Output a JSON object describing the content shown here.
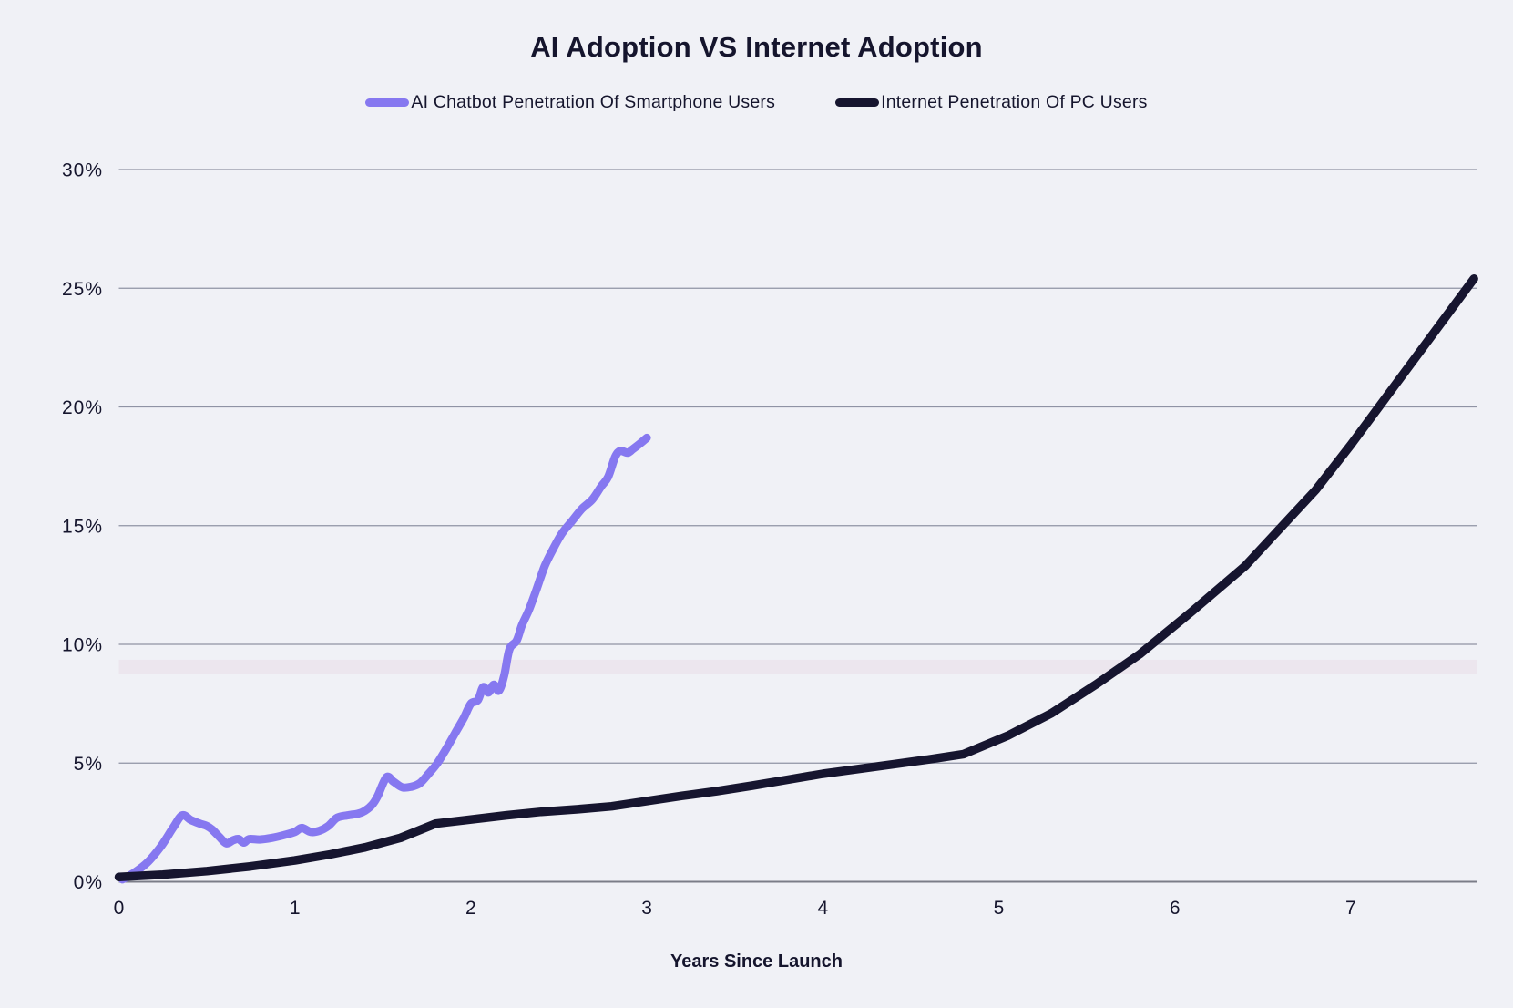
{
  "page": {
    "title": "AI Adoption VS Internet Adoption",
    "x_axis_title": "Years Since Launch"
  },
  "colors": {
    "background": "#f0f1f6",
    "gridline": "#8f93a4",
    "axis_line": "#7b7d88",
    "text": "#15152d",
    "ai_series": "#8678f0",
    "internet_series": "#16152f",
    "highlight_band": "#dfb8cc"
  },
  "chart_data": {
    "type": "line",
    "title": "AI Adoption VS Internet Adoption",
    "xlabel": "Years Since Launch",
    "ylabel": "",
    "xlim": [
      0,
      7.72
    ],
    "ylim": [
      0,
      30
    ],
    "grid": "horizontal",
    "legend_position": "top",
    "x_ticks": [
      {
        "value": 0,
        "label": "0"
      },
      {
        "value": 1,
        "label": "1"
      },
      {
        "value": 2,
        "label": "2"
      },
      {
        "value": 3,
        "label": "3"
      },
      {
        "value": 4,
        "label": "4"
      },
      {
        "value": 5,
        "label": "5"
      },
      {
        "value": 6,
        "label": "6"
      },
      {
        "value": 7,
        "label": "7"
      }
    ],
    "y_ticks": [
      {
        "value": 0,
        "label": "0%"
      },
      {
        "value": 5,
        "label": "5%"
      },
      {
        "value": 10,
        "label": "10%"
      },
      {
        "value": 15,
        "label": "15%"
      },
      {
        "value": 20,
        "label": "20%"
      },
      {
        "value": 25,
        "label": "25%"
      },
      {
        "value": 30,
        "label": "30%"
      }
    ],
    "highlight_band": {
      "y_from": 8.75,
      "y_to": 9.35,
      "color": "#dfb8cc",
      "opacity": 0.18
    },
    "series": [
      {
        "name": "AI Chatbot Penetration Of Smartphone Users",
        "color": "#8678f0",
        "smooth": true,
        "stroke_width": 9,
        "points": [
          [
            0.02,
            0.1
          ],
          [
            0.08,
            0.35
          ],
          [
            0.16,
            0.8
          ],
          [
            0.24,
            1.5
          ],
          [
            0.31,
            2.3
          ],
          [
            0.36,
            2.8
          ],
          [
            0.41,
            2.6
          ],
          [
            0.46,
            2.45
          ],
          [
            0.5,
            2.35
          ],
          [
            0.53,
            2.2
          ],
          [
            0.57,
            1.9
          ],
          [
            0.61,
            1.62
          ],
          [
            0.65,
            1.75
          ],
          [
            0.68,
            1.8
          ],
          [
            0.71,
            1.65
          ],
          [
            0.74,
            1.8
          ],
          [
            0.8,
            1.78
          ],
          [
            0.87,
            1.85
          ],
          [
            0.94,
            1.97
          ],
          [
            1.0,
            2.1
          ],
          [
            1.04,
            2.27
          ],
          [
            1.09,
            2.1
          ],
          [
            1.14,
            2.15
          ],
          [
            1.19,
            2.35
          ],
          [
            1.24,
            2.7
          ],
          [
            1.3,
            2.8
          ],
          [
            1.36,
            2.87
          ],
          [
            1.4,
            3.0
          ],
          [
            1.44,
            3.25
          ],
          [
            1.47,
            3.6
          ],
          [
            1.52,
            4.4
          ],
          [
            1.56,
            4.22
          ],
          [
            1.61,
            3.98
          ],
          [
            1.66,
            4.0
          ],
          [
            1.71,
            4.15
          ],
          [
            1.76,
            4.55
          ],
          [
            1.81,
            5.0
          ],
          [
            1.86,
            5.6
          ],
          [
            1.91,
            6.25
          ],
          [
            1.96,
            6.9
          ],
          [
            2.0,
            7.5
          ],
          [
            2.04,
            7.65
          ],
          [
            2.07,
            8.2
          ],
          [
            2.1,
            7.97
          ],
          [
            2.13,
            8.3
          ],
          [
            2.16,
            8.05
          ],
          [
            2.19,
            8.7
          ],
          [
            2.22,
            9.8
          ],
          [
            2.26,
            10.15
          ],
          [
            2.29,
            10.8
          ],
          [
            2.33,
            11.45
          ],
          [
            2.37,
            12.25
          ],
          [
            2.42,
            13.3
          ],
          [
            2.47,
            14.05
          ],
          [
            2.52,
            14.7
          ],
          [
            2.57,
            15.15
          ],
          [
            2.63,
            15.7
          ],
          [
            2.69,
            16.1
          ],
          [
            2.74,
            16.65
          ],
          [
            2.78,
            17.05
          ],
          [
            2.82,
            17.9
          ],
          [
            2.85,
            18.15
          ],
          [
            2.89,
            18.07
          ],
          [
            2.92,
            18.22
          ],
          [
            2.96,
            18.45
          ],
          [
            3.0,
            18.7
          ]
        ]
      },
      {
        "name": "Internet Penetration Of PC Users",
        "color": "#16152f",
        "smooth": false,
        "stroke_width": 9.5,
        "points": [
          [
            0,
            0.2
          ],
          [
            0.25,
            0.3
          ],
          [
            0.5,
            0.45
          ],
          [
            0.75,
            0.65
          ],
          [
            1.0,
            0.9
          ],
          [
            1.2,
            1.15
          ],
          [
            1.4,
            1.45
          ],
          [
            1.6,
            1.85
          ],
          [
            1.8,
            2.45
          ],
          [
            2.0,
            2.62
          ],
          [
            2.2,
            2.8
          ],
          [
            2.4,
            2.95
          ],
          [
            2.6,
            3.05
          ],
          [
            2.8,
            3.18
          ],
          [
            3.0,
            3.4
          ],
          [
            3.2,
            3.62
          ],
          [
            3.4,
            3.82
          ],
          [
            3.6,
            4.05
          ],
          [
            3.8,
            4.3
          ],
          [
            4.0,
            4.55
          ],
          [
            4.2,
            4.75
          ],
          [
            4.4,
            4.95
          ],
          [
            4.6,
            5.15
          ],
          [
            4.8,
            5.38
          ],
          [
            5.05,
            6.15
          ],
          [
            5.3,
            7.1
          ],
          [
            5.55,
            8.3
          ],
          [
            5.8,
            9.58
          ],
          [
            6.1,
            11.4
          ],
          [
            6.4,
            13.3
          ],
          [
            6.6,
            14.9
          ],
          [
            6.8,
            16.5
          ],
          [
            7.0,
            18.4
          ],
          [
            7.2,
            20.4
          ],
          [
            7.45,
            22.9
          ],
          [
            7.7,
            25.4
          ]
        ]
      }
    ]
  }
}
